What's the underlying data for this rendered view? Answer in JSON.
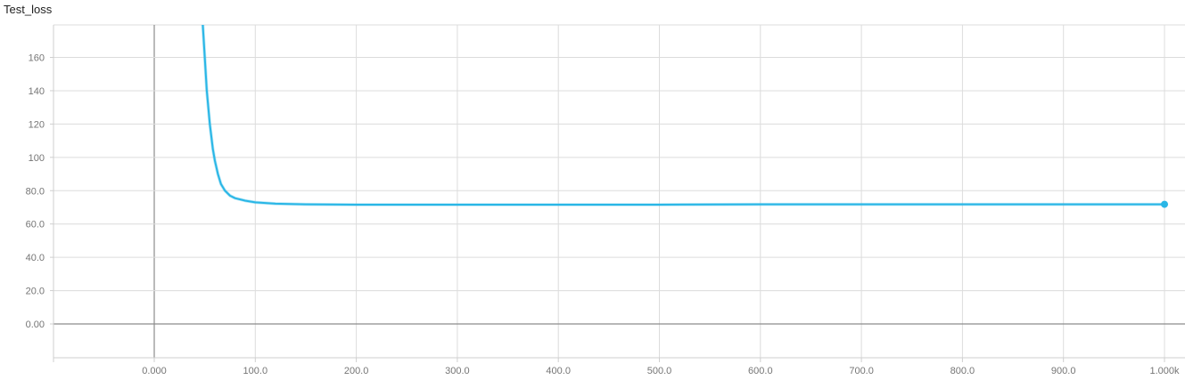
{
  "chart_data": {
    "type": "line",
    "title": "Test_loss",
    "xlabel": "",
    "ylabel": "",
    "xlim": [
      -100,
      1020
    ],
    "ylim": [
      -20,
      180
    ],
    "x_ticks": [
      0,
      100,
      200,
      300,
      400,
      500,
      600,
      700,
      800,
      900,
      1000
    ],
    "x_tick_labels": [
      "0.000",
      "100.0",
      "200.0",
      "300.0",
      "400.0",
      "500.0",
      "600.0",
      "700.0",
      "800.0",
      "900.0",
      "1.000k"
    ],
    "y_ticks": [
      0,
      20,
      40,
      60,
      80,
      100,
      120,
      140,
      160
    ],
    "y_tick_labels": [
      "0.00",
      "20.0",
      "40.0",
      "60.0",
      "80.0",
      "100",
      "120",
      "140",
      "160"
    ],
    "grid": true,
    "colors": {
      "series": "#29b6e6",
      "axis": "#8c8c8c",
      "grid": "#dcdcdc"
    },
    "series": [
      {
        "x": [
          48,
          50,
          52,
          55,
          58,
          60,
          63,
          66,
          70,
          75,
          80,
          90,
          100,
          120,
          150,
          200,
          300,
          400,
          500,
          600,
          700,
          800,
          900,
          1000
        ],
        "y": [
          180,
          160,
          140,
          120,
          105,
          98,
          90,
          84,
          80,
          77,
          75.5,
          74,
          73,
          72.2,
          71.8,
          71.6,
          71.6,
          71.6,
          71.6,
          71.8,
          71.8,
          71.8,
          71.8,
          71.8
        ]
      }
    ]
  }
}
